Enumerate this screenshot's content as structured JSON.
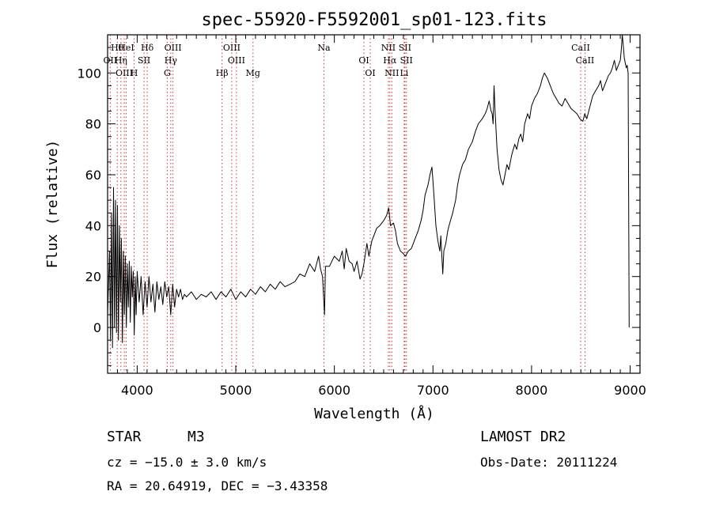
{
  "chart_data": {
    "type": "line",
    "title": "spec-55920-F5592001_sp01-123.fits",
    "xlabel": "Wavelength (Å)",
    "ylabel": "Flux (relative)",
    "xlim": [
      3700,
      9100
    ],
    "ylim": [
      -18,
      115
    ],
    "x_ticks": [
      4000,
      5000,
      6000,
      7000,
      8000,
      9000
    ],
    "y_ticks": [
      0,
      20,
      40,
      60,
      80,
      100
    ],
    "series": [
      {
        "points": [
          [
            3700,
            5
          ],
          [
            3720,
            30
          ],
          [
            3730,
            -5
          ],
          [
            3740,
            45
          ],
          [
            3750,
            -8
          ],
          [
            3760,
            55
          ],
          [
            3770,
            0
          ],
          [
            3780,
            50
          ],
          [
            3790,
            -2
          ],
          [
            3800,
            48
          ],
          [
            3810,
            -5
          ],
          [
            3820,
            40
          ],
          [
            3830,
            10
          ],
          [
            3840,
            35
          ],
          [
            3850,
            -6
          ],
          [
            3860,
            30
          ],
          [
            3870,
            5
          ],
          [
            3880,
            28
          ],
          [
            3890,
            0
          ],
          [
            3900,
            25
          ],
          [
            3910,
            8
          ],
          [
            3920,
            26
          ],
          [
            3930,
            2
          ],
          [
            3940,
            24
          ],
          [
            3950,
            12
          ],
          [
            3960,
            22
          ],
          [
            3970,
            -3
          ],
          [
            3980,
            20
          ],
          [
            3990,
            5
          ],
          [
            4000,
            22
          ],
          [
            4020,
            10
          ],
          [
            4040,
            20
          ],
          [
            4060,
            5
          ],
          [
            4080,
            18
          ],
          [
            4100,
            8
          ],
          [
            4120,
            20
          ],
          [
            4140,
            10
          ],
          [
            4160,
            17
          ],
          [
            4180,
            6
          ],
          [
            4200,
            18
          ],
          [
            4220,
            11
          ],
          [
            4240,
            16
          ],
          [
            4260,
            9
          ],
          [
            4280,
            18
          ],
          [
            4300,
            12
          ],
          [
            4320,
            16
          ],
          [
            4340,
            5
          ],
          [
            4360,
            17
          ],
          [
            4380,
            8
          ],
          [
            4400,
            15
          ],
          [
            4420,
            12
          ],
          [
            4440,
            15
          ],
          [
            4460,
            11
          ],
          [
            4480,
            13
          ],
          [
            4500,
            12
          ],
          [
            4550,
            14
          ],
          [
            4600,
            11
          ],
          [
            4650,
            13
          ],
          [
            4700,
            12
          ],
          [
            4750,
            14
          ],
          [
            4800,
            11
          ],
          [
            4850,
            14
          ],
          [
            4900,
            12
          ],
          [
            4950,
            15
          ],
          [
            5000,
            11
          ],
          [
            5050,
            14
          ],
          [
            5100,
            12
          ],
          [
            5150,
            15
          ],
          [
            5200,
            13
          ],
          [
            5250,
            16
          ],
          [
            5300,
            14
          ],
          [
            5350,
            17
          ],
          [
            5400,
            15
          ],
          [
            5450,
            18
          ],
          [
            5500,
            16
          ],
          [
            5550,
            17
          ],
          [
            5600,
            18
          ],
          [
            5650,
            21
          ],
          [
            5700,
            20
          ],
          [
            5750,
            25
          ],
          [
            5800,
            22
          ],
          [
            5840,
            28
          ],
          [
            5860,
            23
          ],
          [
            5880,
            20
          ],
          [
            5900,
            5
          ],
          [
            5910,
            24
          ],
          [
            5950,
            24
          ],
          [
            6000,
            28
          ],
          [
            6050,
            26
          ],
          [
            6080,
            30
          ],
          [
            6100,
            23
          ],
          [
            6120,
            31
          ],
          [
            6150,
            26
          ],
          [
            6180,
            25
          ],
          [
            6200,
            22
          ],
          [
            6230,
            26
          ],
          [
            6260,
            19
          ],
          [
            6280,
            21
          ],
          [
            6300,
            25
          ],
          [
            6330,
            33
          ],
          [
            6350,
            28
          ],
          [
            6380,
            34
          ],
          [
            6400,
            36
          ],
          [
            6430,
            39
          ],
          [
            6460,
            40
          ],
          [
            6500,
            42
          ],
          [
            6530,
            44
          ],
          [
            6550,
            47
          ],
          [
            6570,
            40
          ],
          [
            6600,
            41
          ],
          [
            6620,
            38
          ],
          [
            6640,
            33
          ],
          [
            6670,
            30
          ],
          [
            6700,
            29
          ],
          [
            6720,
            28
          ],
          [
            6750,
            30
          ],
          [
            6780,
            31
          ],
          [
            6800,
            33
          ],
          [
            6830,
            36
          ],
          [
            6850,
            38
          ],
          [
            6880,
            42
          ],
          [
            6900,
            46
          ],
          [
            6920,
            52
          ],
          [
            6950,
            56
          ],
          [
            6970,
            60
          ],
          [
            6990,
            63
          ],
          [
            7010,
            52
          ],
          [
            7030,
            40
          ],
          [
            7050,
            34
          ],
          [
            7070,
            30
          ],
          [
            7080,
            36
          ],
          [
            7100,
            21
          ],
          [
            7110,
            30
          ],
          [
            7130,
            33
          ],
          [
            7150,
            38
          ],
          [
            7170,
            41
          ],
          [
            7200,
            45
          ],
          [
            7230,
            50
          ],
          [
            7250,
            56
          ],
          [
            7270,
            60
          ],
          [
            7300,
            64
          ],
          [
            7330,
            66
          ],
          [
            7360,
            70
          ],
          [
            7400,
            73
          ],
          [
            7430,
            77
          ],
          [
            7460,
            80
          ],
          [
            7500,
            82
          ],
          [
            7530,
            84
          ],
          [
            7550,
            86
          ],
          [
            7570,
            89
          ],
          [
            7590,
            85
          ],
          [
            7600,
            84
          ],
          [
            7610,
            80
          ],
          [
            7620,
            95
          ],
          [
            7630,
            85
          ],
          [
            7650,
            70
          ],
          [
            7670,
            62
          ],
          [
            7690,
            58
          ],
          [
            7710,
            56
          ],
          [
            7730,
            60
          ],
          [
            7750,
            64
          ],
          [
            7770,
            62
          ],
          [
            7800,
            68
          ],
          [
            7830,
            72
          ],
          [
            7850,
            70
          ],
          [
            7870,
            74
          ],
          [
            7890,
            76
          ],
          [
            7910,
            73
          ],
          [
            7930,
            80
          ],
          [
            7960,
            84
          ],
          [
            7980,
            82
          ],
          [
            8000,
            87
          ],
          [
            8030,
            90
          ],
          [
            8060,
            92
          ],
          [
            8090,
            95
          ],
          [
            8110,
            98
          ],
          [
            8130,
            100
          ],
          [
            8160,
            98
          ],
          [
            8190,
            95
          ],
          [
            8220,
            92
          ],
          [
            8250,
            90
          ],
          [
            8280,
            88
          ],
          [
            8310,
            87
          ],
          [
            8340,
            90
          ],
          [
            8370,
            88
          ],
          [
            8400,
            86
          ],
          [
            8430,
            85
          ],
          [
            8460,
            84
          ],
          [
            8490,
            82
          ],
          [
            8520,
            81
          ],
          [
            8540,
            84
          ],
          [
            8560,
            82
          ],
          [
            8580,
            85
          ],
          [
            8600,
            88
          ],
          [
            8620,
            91
          ],
          [
            8650,
            93
          ],
          [
            8680,
            95
          ],
          [
            8700,
            97
          ],
          [
            8720,
            93
          ],
          [
            8740,
            95
          ],
          [
            8760,
            97
          ],
          [
            8780,
            99
          ],
          [
            8800,
            100
          ],
          [
            8820,
            102
          ],
          [
            8840,
            105
          ],
          [
            8860,
            101
          ],
          [
            8880,
            103
          ],
          [
            8900,
            105
          ],
          [
            8910,
            109
          ],
          [
            8920,
            115
          ],
          [
            8930,
            111
          ],
          [
            8940,
            106
          ],
          [
            8950,
            104
          ],
          [
            8960,
            102
          ],
          [
            8970,
            103
          ],
          [
            8980,
            100
          ],
          [
            8990,
            0
          ]
        ]
      }
    ],
    "lines": [
      {
        "label": "Hθ",
        "x": 3798
      },
      {
        "label": "OII",
        "x": 3727
      },
      {
        "label": "OIII",
        "x": 3869
      },
      {
        "label": "HeI",
        "x": 3889
      },
      {
        "label": "Hη",
        "x": 3835
      },
      {
        "label": "H",
        "x": 3969
      },
      {
        "label": "Hδ",
        "x": 4102
      },
      {
        "label": "SII",
        "x": 4070
      },
      {
        "label": "G",
        "x": 4305
      },
      {
        "label": "OIII",
        "x": 4363
      },
      {
        "label": "Hγ",
        "x": 4341
      },
      {
        "label": "Hβ",
        "x": 4861
      },
      {
        "label": "OIII",
        "x": 4959
      },
      {
        "label": "OIII",
        "x": 5007
      },
      {
        "label": "Mg",
        "x": 5175
      },
      {
        "label": "Na",
        "x": 5894
      },
      {
        "label": "OI",
        "x": 6300
      },
      {
        "label": "OI",
        "x": 6364
      },
      {
        "label": "NII",
        "x": 6548
      },
      {
        "label": "Hα",
        "x": 6563
      },
      {
        "label": "NII",
        "x": 6583
      },
      {
        "label": "SII",
        "x": 6716
      },
      {
        "label": "SII",
        "x": 6731
      },
      {
        "label": "Li",
        "x": 6708
      },
      {
        "label": "CaII",
        "x": 8498
      },
      {
        "label": "CaII",
        "x": 8542
      }
    ],
    "grid": false,
    "legend": "none"
  },
  "info": {
    "object_class": "STAR",
    "subclass": "M3",
    "survey": "LAMOST DR2",
    "cz": "cz = −15.0 ± 3.0 km/s",
    "obs_date": "Obs-Date: 20111224",
    "coords": "RA =  20.64919, DEC =  −3.43358"
  },
  "colors": {
    "line": "#000000",
    "marker_lines": "#cc3333",
    "axes": "#000000"
  }
}
